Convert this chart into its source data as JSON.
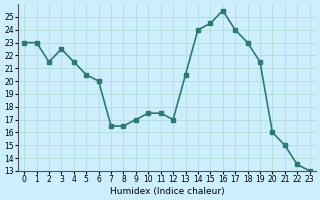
{
  "x": [
    0,
    1,
    2,
    3,
    4,
    5,
    6,
    7,
    8,
    9,
    10,
    11,
    12,
    13,
    14,
    15,
    16,
    17,
    18,
    19,
    20,
    21,
    22,
    23
  ],
  "y": [
    23,
    23,
    21.5,
    22.5,
    21.5,
    20.5,
    20,
    16.5,
    16.5,
    17,
    17.5,
    17.5,
    17,
    20.5,
    24,
    24.5,
    25.5,
    24,
    23,
    21.5,
    16,
    15,
    13.5,
    13
  ],
  "line_color": "#2d7a6e",
  "marker_color": "#2d7a6e",
  "bg_color": "#cceeff",
  "grid_color": "#aaddcc",
  "xlabel": "Humidex (Indice chaleur)",
  "ylabel": "",
  "ylim": [
    13,
    25.5
  ],
  "xlim": [
    -0.5,
    23.5
  ],
  "yticks": [
    13,
    14,
    15,
    16,
    17,
    18,
    19,
    20,
    21,
    22,
    23,
    24,
    25
  ],
  "xtick_labels": [
    "0",
    "1",
    "2",
    "3",
    "4",
    "5",
    "6",
    "7",
    "8",
    "9",
    "10",
    "11",
    "12",
    "13",
    "14",
    "15",
    "16",
    "17",
    "18",
    "19",
    "20",
    "21",
    "22",
    "23"
  ]
}
